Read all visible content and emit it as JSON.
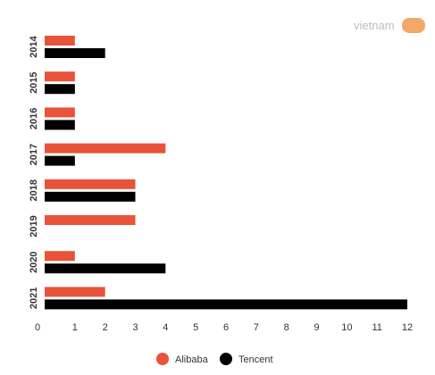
{
  "chart_data": {
    "type": "bar",
    "orientation": "horizontal",
    "categories": [
      "2014",
      "2015",
      "2016",
      "2017",
      "2018",
      "2019",
      "2020",
      "2021"
    ],
    "series": [
      {
        "name": "Alibaba",
        "color": "#e8533a",
        "values": [
          1,
          1,
          1,
          4,
          3,
          3,
          1,
          2
        ]
      },
      {
        "name": "Tencent",
        "color": "#000000",
        "values": [
          2,
          1,
          1,
          1,
          3,
          0,
          4,
          12
        ]
      }
    ],
    "xlim": [
      0,
      12
    ],
    "xticks": [
      "0",
      "1",
      "2",
      "3",
      "4",
      "5",
      "6",
      "7",
      "8",
      "9",
      "10",
      "11",
      "12"
    ],
    "grid": false,
    "legend_position": "bottom-center"
  },
  "watermark": {
    "icon": "vietnamnet-logo",
    "text": "vietnam"
  }
}
